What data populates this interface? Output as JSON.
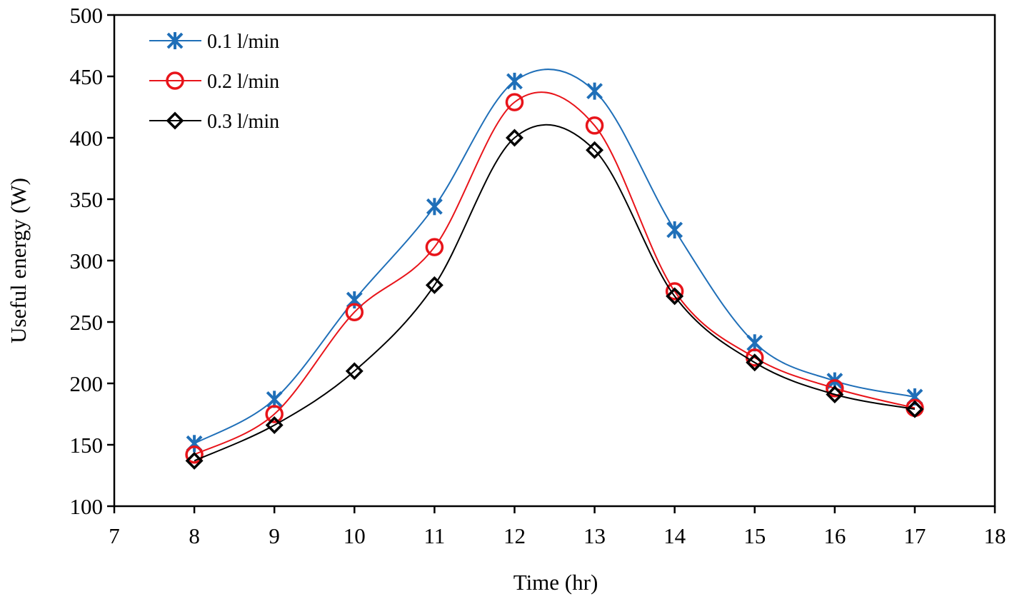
{
  "chart_data": {
    "type": "line",
    "title": "",
    "xlabel": "Time (hr)",
    "ylabel": "Useful energy (W)",
    "xlim": [
      7,
      18
    ],
    "ylim": [
      100,
      500
    ],
    "xticks": [
      7,
      8,
      9,
      10,
      11,
      12,
      13,
      14,
      15,
      16,
      17,
      18
    ],
    "yticks": [
      100,
      150,
      200,
      250,
      300,
      350,
      400,
      450,
      500
    ],
    "grid": false,
    "legend_position": "top-left",
    "smooth": true,
    "x": [
      8,
      9,
      10,
      11,
      12,
      13,
      14,
      15,
      16,
      17
    ],
    "series": [
      {
        "name": "0.1 l/min",
        "color": "#1f6fb8",
        "marker": "asterisk",
        "values": [
          151,
          187,
          268,
          344,
          446,
          438,
          325,
          233,
          202,
          189
        ]
      },
      {
        "name": "0.2 l/min",
        "color": "#e8141a",
        "marker": "circle",
        "values": [
          142,
          175,
          258,
          311,
          429,
          410,
          275,
          221,
          196,
          180
        ]
      },
      {
        "name": "0.3 l/min",
        "color": "#000000",
        "marker": "diamond",
        "values": [
          137,
          166,
          210,
          280,
          400,
          390,
          271,
          217,
          191,
          179
        ]
      }
    ]
  }
}
